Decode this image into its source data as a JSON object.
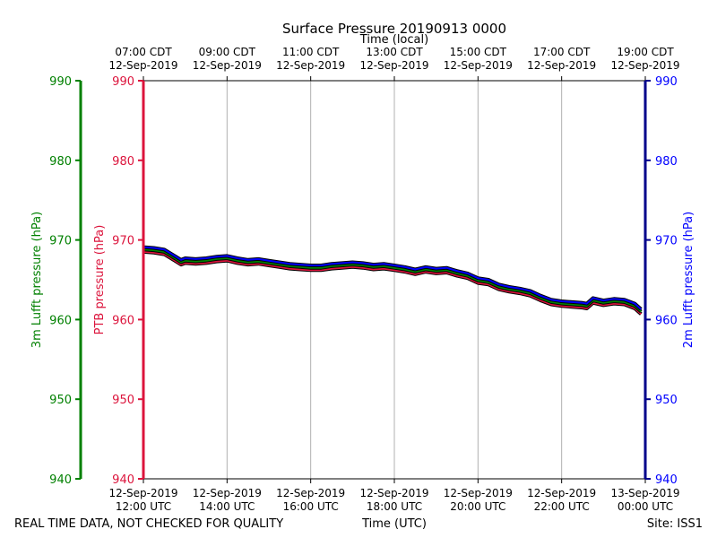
{
  "chart_data": {
    "type": "line",
    "title": "Surface Pressure 20190913 0000",
    "xlabel_bottom": "Time (UTC)",
    "xlabel_top": "Time (local)",
    "ylabel_left_outer": "3m Lufft pressure (hPa)",
    "ylabel_left_inner": "PTB pressure (hPa)",
    "ylabel_right": "2m Lufft pressure (hPa)",
    "x_unit": "hours since 12-Sep-2019 12:00 UTC",
    "xlim": [
      0,
      12
    ],
    "ylim": [
      940,
      990
    ],
    "y_ticks": [
      940,
      950,
      960,
      970,
      980,
      990
    ],
    "grid": "vertical",
    "x_ticks_bottom": [
      {
        "x": 0,
        "line1": "12-Sep-2019",
        "line2": "12:00 UTC"
      },
      {
        "x": 2,
        "line1": "12-Sep-2019",
        "line2": "14:00 UTC"
      },
      {
        "x": 4,
        "line1": "12-Sep-2019",
        "line2": "16:00 UTC"
      },
      {
        "x": 6,
        "line1": "12-Sep-2019",
        "line2": "18:00 UTC"
      },
      {
        "x": 8,
        "line1": "12-Sep-2019",
        "line2": "20:00 UTC"
      },
      {
        "x": 10,
        "line1": "12-Sep-2019",
        "line2": "22:00 UTC"
      },
      {
        "x": 12,
        "line1": "13-Sep-2019",
        "line2": "00:00 UTC"
      }
    ],
    "x_ticks_top": [
      {
        "x": 0,
        "line1": "07:00 CDT",
        "line2": "12-Sep-2019"
      },
      {
        "x": 2,
        "line1": "09:00 CDT",
        "line2": "12-Sep-2019"
      },
      {
        "x": 4,
        "line1": "11:00 CDT",
        "line2": "12-Sep-2019"
      },
      {
        "x": 6,
        "line1": "13:00 CDT",
        "line2": "12-Sep-2019"
      },
      {
        "x": 8,
        "line1": "15:00 CDT",
        "line2": "12-Sep-2019"
      },
      {
        "x": 10,
        "line1": "17:00 CDT",
        "line2": "12-Sep-2019"
      },
      {
        "x": 12,
        "line1": "19:00 CDT",
        "line2": "12-Sep-2019"
      }
    ],
    "axis_colors": {
      "left_outer": "#008000",
      "left_inner": "#dc143c",
      "right": "#00008b",
      "right_text": "#0000ff"
    },
    "series": [
      {
        "name": "2m Lufft",
        "color": "#0000ff",
        "x": [
          0,
          0.25,
          0.5,
          0.75,
          0.9,
          1.0,
          1.25,
          1.5,
          1.75,
          2.0,
          2.25,
          2.5,
          2.75,
          3.0,
          3.25,
          3.5,
          3.75,
          4.0,
          4.25,
          4.5,
          4.75,
          5.0,
          5.25,
          5.5,
          5.75,
          6.0,
          6.25,
          6.5,
          6.75,
          7.0,
          7.25,
          7.5,
          7.75,
          8.0,
          8.25,
          8.5,
          8.75,
          9.0,
          9.25,
          9.5,
          9.75,
          10.0,
          10.25,
          10.5,
          10.6,
          10.75,
          11.0,
          11.25,
          11.5,
          11.75,
          11.9
        ],
        "y": [
          969.1,
          969.0,
          968.8,
          968.0,
          967.5,
          967.7,
          967.6,
          967.7,
          967.9,
          968.0,
          967.7,
          967.5,
          967.6,
          967.4,
          967.2,
          967.0,
          966.9,
          966.8,
          966.8,
          967.0,
          967.1,
          967.2,
          967.1,
          966.9,
          967.0,
          966.8,
          966.6,
          966.3,
          966.6,
          966.4,
          966.5,
          966.1,
          965.8,
          965.2,
          965.0,
          964.4,
          964.1,
          963.9,
          963.6,
          963.0,
          962.5,
          962.3,
          962.2,
          962.1,
          962.0,
          962.7,
          962.4,
          962.6,
          962.5,
          962.0,
          961.3
        ]
      },
      {
        "name": "3m Lufft",
        "color": "#008000",
        "x": [
          0,
          0.25,
          0.5,
          0.75,
          0.9,
          1.0,
          1.25,
          1.5,
          1.75,
          2.0,
          2.25,
          2.5,
          2.75,
          3.0,
          3.25,
          3.5,
          3.75,
          4.0,
          4.25,
          4.5,
          4.75,
          5.0,
          5.25,
          5.5,
          5.75,
          6.0,
          6.25,
          6.5,
          6.75,
          7.0,
          7.25,
          7.5,
          7.75,
          8.0,
          8.25,
          8.5,
          8.75,
          9.0,
          9.25,
          9.5,
          9.75,
          10.0,
          10.25,
          10.5,
          10.6,
          10.75,
          11.0,
          11.25,
          11.5,
          11.75,
          11.9
        ],
        "y": [
          968.8,
          968.7,
          968.5,
          967.7,
          967.2,
          967.4,
          967.3,
          967.4,
          967.6,
          967.7,
          967.4,
          967.2,
          967.3,
          967.1,
          966.9,
          966.7,
          966.6,
          966.5,
          966.5,
          966.7,
          966.8,
          966.9,
          966.8,
          966.6,
          966.7,
          966.5,
          966.3,
          966.0,
          966.3,
          966.1,
          966.2,
          965.8,
          965.5,
          964.9,
          964.7,
          964.1,
          963.8,
          963.6,
          963.3,
          962.7,
          962.2,
          962.0,
          961.9,
          961.8,
          961.7,
          962.4,
          962.1,
          962.3,
          962.2,
          961.7,
          961.0
        ]
      },
      {
        "name": "PTB",
        "color": "#dc143c",
        "x": [
          0,
          0.25,
          0.5,
          0.75,
          0.9,
          1.0,
          1.25,
          1.5,
          1.75,
          2.0,
          2.25,
          2.5,
          2.75,
          3.0,
          3.25,
          3.5,
          3.75,
          4.0,
          4.25,
          4.5,
          4.75,
          5.0,
          5.25,
          5.5,
          5.75,
          6.0,
          6.25,
          6.5,
          6.75,
          7.0,
          7.25,
          7.5,
          7.75,
          8.0,
          8.25,
          8.5,
          8.75,
          9.0,
          9.25,
          9.5,
          9.75,
          10.0,
          10.25,
          10.5,
          10.6,
          10.75,
          11.0,
          11.25,
          11.5,
          11.75,
          11.9
        ],
        "y": [
          968.5,
          968.4,
          968.2,
          967.4,
          966.9,
          967.1,
          967.0,
          967.1,
          967.3,
          967.4,
          967.1,
          966.9,
          967.0,
          966.8,
          966.6,
          966.4,
          966.3,
          966.2,
          966.2,
          966.4,
          966.5,
          966.6,
          966.5,
          966.3,
          966.4,
          966.2,
          966.0,
          965.7,
          966.0,
          965.8,
          965.9,
          965.5,
          965.2,
          964.6,
          964.4,
          963.8,
          963.5,
          963.3,
          963.0,
          962.4,
          961.9,
          961.7,
          961.6,
          961.5,
          961.4,
          962.1,
          961.8,
          962.0,
          961.9,
          961.4,
          960.7
        ]
      }
    ]
  },
  "footer": {
    "left_note": "REAL TIME DATA, NOT CHECKED FOR QUALITY",
    "site": "Site: ISS1"
  }
}
